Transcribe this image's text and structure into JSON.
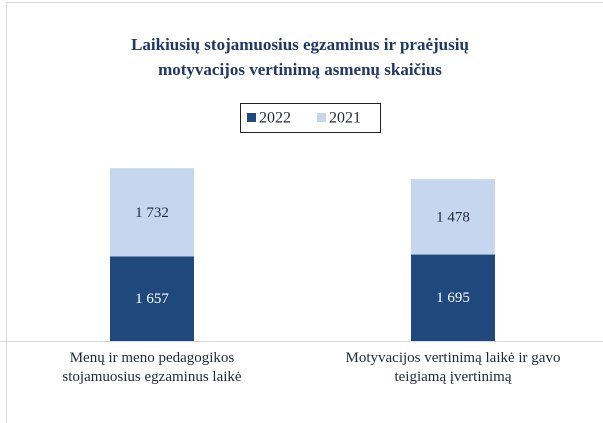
{
  "chart_data": {
    "type": "stacked_bar",
    "title": "Laikiusių stojamuosius egzaminus ir praėjusių motyvacijos vertinimą asmenų skaičius",
    "categories": [
      "Menų ir meno pedagogikos stojamuosius egzaminus laikė",
      "Motyvacijos vertinimą laikė ir gavo teigiamą įvertinimą"
    ],
    "series": [
      {
        "name": "2022",
        "color": "#1f497d",
        "values": [
          1657,
          1695
        ],
        "value_labels": [
          "1 657",
          "1 695"
        ]
      },
      {
        "name": "2021",
        "color": "#c6d6ee",
        "values": [
          1732,
          1478
        ],
        "value_labels": [
          "1 732",
          "1 478"
        ]
      }
    ],
    "ylim": [
      0,
      4000
    ]
  }
}
